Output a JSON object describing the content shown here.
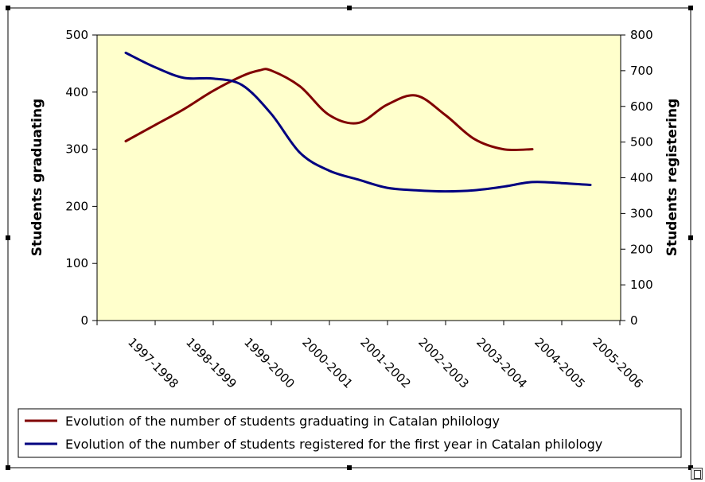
{
  "chart_data": {
    "type": "line",
    "categories": [
      "1997-1998",
      "1998-1999",
      "1999-2000",
      "2000-2001",
      "2001-2002",
      "2002-2003",
      "2003-2004",
      "2004-2005",
      "2005-2006"
    ],
    "y_left": {
      "label": "Students graduating",
      "ticks": [
        0,
        100,
        200,
        300,
        400,
        500
      ],
      "range": [
        0,
        500
      ]
    },
    "y_right": {
      "label": "Students registering",
      "ticks": [
        0,
        100,
        200,
        300,
        400,
        500,
        600,
        700,
        800
      ],
      "range": [
        0,
        800
      ]
    },
    "background_color": "#ffffcc",
    "series": [
      {
        "name": "Evolution of the number of students graduating in Catalan philology",
        "axis": "left",
        "color": "#800000",
        "x": [
          0,
          0.5,
          1,
          1.5,
          2,
          2.3,
          2.5,
          3,
          3.5,
          4,
          4.5,
          5,
          5.5,
          6,
          6.5,
          7
        ],
        "values": [
          314,
          342,
          370,
          402,
          428,
          438,
          438,
          410,
          360,
          346,
          378,
          394,
          360,
          318,
          300,
          300
        ]
      },
      {
        "name": "Evolution of the number of students registered for the first year in Catalan philology",
        "axis": "right",
        "color": "#000080",
        "x": [
          0,
          0.5,
          1,
          1.5,
          2,
          2.5,
          3,
          3.5,
          4,
          4.5,
          5,
          5.5,
          6,
          6.5,
          7,
          7.5,
          8
        ],
        "values": [
          750,
          710,
          680,
          678,
          660,
          580,
          470,
          420,
          395,
          372,
          365,
          362,
          365,
          375,
          388,
          385,
          380
        ]
      }
    ],
    "legend_position": "bottom"
  }
}
